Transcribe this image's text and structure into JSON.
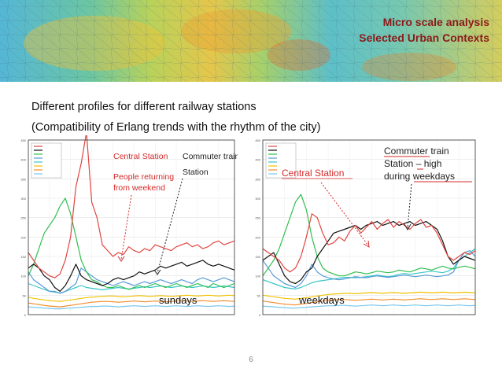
{
  "header": {
    "title_line1": "Micro scale analysis",
    "title_line2": "Selected Urban Contexts",
    "title_color": "#8b1a1a"
  },
  "intro": {
    "line1": "Different profiles for different railway stations",
    "line2": "(Compatibility of Erlang trends with the rhythm of the city)"
  },
  "page_number": "6",
  "colors": {
    "red_series": "#e0453f",
    "annotation_red": "#d62a2a",
    "annotation_dark": "#222222"
  },
  "chart_data": [
    {
      "type": "line",
      "label": "sundays",
      "ylim": [
        0,
        450
      ],
      "yticks": [
        0,
        50,
        100,
        150,
        200,
        250,
        300,
        350,
        400,
        450
      ],
      "grid": true,
      "legend_position": "top-left",
      "series": [
        {
          "color": "#e0453f",
          "values": [
            160,
            140,
            120,
            110,
            100,
            95,
            105,
            140,
            200,
            330,
            390,
            470,
            290,
            250,
            180,
            165,
            150,
            160,
            155,
            175,
            165,
            160,
            170,
            165,
            180,
            175,
            170,
            165,
            175,
            180,
            185,
            175,
            180,
            170,
            175,
            185,
            190,
            180,
            185,
            190
          ]
        },
        {
          "color": "#111111",
          "values": [
            120,
            130,
            120,
            100,
            90,
            70,
            60,
            75,
            100,
            130,
            100,
            90,
            85,
            80,
            75,
            80,
            90,
            95,
            90,
            95,
            100,
            110,
            105,
            110,
            115,
            125,
            120,
            125,
            130,
            135,
            125,
            130,
            135,
            140,
            130,
            125,
            130,
            125,
            120,
            115
          ]
        },
        {
          "color": "#2fbf4f",
          "values": [
            100,
            130,
            170,
            210,
            230,
            250,
            280,
            300,
            260,
            200,
            140,
            110,
            90,
            85,
            75,
            70,
            70,
            75,
            70,
            65,
            70,
            75,
            70,
            75,
            80,
            75,
            70,
            75,
            80,
            75,
            70,
            75,
            80,
            75,
            70,
            80,
            75,
            70,
            75,
            80
          ]
        },
        {
          "color": "#5a9bd6",
          "values": [
            110,
            90,
            80,
            70,
            60,
            60,
            55,
            60,
            70,
            80,
            120,
            110,
            100,
            90,
            85,
            80,
            75,
            80,
            85,
            80,
            75,
            80,
            85,
            80,
            85,
            90,
            85,
            80,
            85,
            90,
            85,
            80,
            90,
            95,
            90,
            85,
            90,
            95,
            90,
            85
          ]
        },
        {
          "color": "#38c6c6",
          "values": [
            80,
            75,
            70,
            65,
            60,
            58,
            56,
            60,
            65,
            70,
            75,
            70,
            68,
            66,
            64,
            66,
            68,
            70,
            68,
            66,
            68,
            70,
            72,
            70,
            72,
            74,
            72,
            70,
            72,
            74,
            72,
            70,
            72,
            74,
            72,
            70,
            72,
            74,
            72,
            70
          ]
        },
        {
          "color": "#f2c200",
          "values": [
            45,
            42,
            40,
            38,
            36,
            35,
            34,
            36,
            38,
            40,
            42,
            44,
            45,
            46,
            47,
            48,
            48,
            47,
            46,
            47,
            48,
            49,
            48,
            47,
            48,
            49,
            48,
            47,
            48,
            49,
            50,
            49,
            48,
            49,
            50,
            49,
            48,
            49,
            50,
            49
          ]
        },
        {
          "color": "#f28c28",
          "values": [
            30,
            28,
            26,
            24,
            22,
            21,
            20,
            22,
            24,
            26,
            28,
            30,
            32,
            33,
            34,
            34,
            33,
            32,
            33,
            34,
            35,
            34,
            33,
            34,
            35,
            34,
            33,
            34,
            35,
            36,
            35,
            34,
            35,
            36,
            35,
            34,
            35,
            36,
            35,
            34
          ]
        },
        {
          "color": "#7ac8ef",
          "values": [
            20,
            19,
            18,
            17,
            16,
            15,
            15,
            16,
            17,
            18,
            19,
            20,
            21,
            21,
            22,
            22,
            21,
            20,
            21,
            22,
            23,
            22,
            21,
            22,
            23,
            22,
            21,
            22,
            23,
            22,
            21,
            22,
            23,
            22,
            21,
            22,
            23,
            22,
            21,
            22
          ]
        }
      ]
    },
    {
      "type": "line",
      "label": "weekdays",
      "ylim": [
        0,
        450
      ],
      "yticks": [
        0,
        50,
        100,
        150,
        200,
        250,
        300,
        350,
        400,
        450
      ],
      "grid": true,
      "legend_position": "top-left",
      "series": [
        {
          "color": "#e0453f",
          "values": [
            170,
            160,
            150,
            140,
            120,
            110,
            120,
            150,
            200,
            260,
            250,
            210,
            180,
            185,
            200,
            190,
            215,
            230,
            210,
            225,
            240,
            220,
            235,
            245,
            225,
            240,
            230,
            220,
            235,
            245,
            225,
            230,
            210,
            180,
            150,
            140,
            150,
            160,
            155,
            165
          ]
        },
        {
          "color": "#111111",
          "values": [
            140,
            150,
            160,
            130,
            100,
            85,
            80,
            90,
            110,
            120,
            150,
            170,
            190,
            210,
            215,
            220,
            225,
            230,
            220,
            230,
            235,
            240,
            230,
            235,
            240,
            230,
            235,
            240,
            230,
            235,
            240,
            230,
            220,
            190,
            150,
            130,
            140,
            150,
            145,
            140
          ]
        },
        {
          "color": "#2fbf4f",
          "values": [
            100,
            120,
            140,
            170,
            210,
            250,
            290,
            310,
            270,
            200,
            150,
            120,
            110,
            105,
            100,
            100,
            105,
            110,
            108,
            105,
            108,
            112,
            110,
            108,
            110,
            115,
            112,
            110,
            115,
            120,
            118,
            115,
            120,
            125,
            120,
            118,
            122,
            125,
            122,
            118
          ]
        },
        {
          "color": "#5a9bd6",
          "values": [
            140,
            120,
            100,
            90,
            80,
            75,
            70,
            80,
            100,
            130,
            110,
            100,
            95,
            92,
            90,
            92,
            95,
            98,
            96,
            95,
            98,
            100,
            98,
            96,
            98,
            100,
            102,
            100,
            98,
            100,
            102,
            100,
            98,
            100,
            102,
            110,
            140,
            160,
            165,
            150
          ]
        },
        {
          "color": "#38c6c6",
          "values": [
            90,
            85,
            80,
            75,
            70,
            68,
            66,
            70,
            76,
            82,
            86,
            88,
            90,
            92,
            94,
            96,
            96,
            95,
            96,
            98,
            100,
            102,
            100,
            98,
            100,
            104,
            106,
            104,
            106,
            108,
            110,
            112,
            110,
            108,
            112,
            120,
            140,
            150,
            160,
            170
          ]
        },
        {
          "color": "#f2c200",
          "values": [
            50,
            48,
            46,
            44,
            42,
            41,
            40,
            42,
            44,
            46,
            48,
            50,
            52,
            53,
            54,
            55,
            55,
            54,
            55,
            56,
            57,
            56,
            55,
            56,
            57,
            56,
            55,
            56,
            57,
            58,
            57,
            56,
            57,
            58,
            57,
            56,
            57,
            58,
            57,
            56
          ]
        },
        {
          "color": "#f28c28",
          "values": [
            35,
            33,
            31,
            29,
            27,
            26,
            25,
            27,
            29,
            31,
            33,
            35,
            37,
            38,
            39,
            39,
            38,
            37,
            38,
            39,
            40,
            39,
            38,
            39,
            40,
            39,
            38,
            39,
            40,
            41,
            40,
            39,
            40,
            41,
            40,
            39,
            40,
            41,
            40,
            39
          ]
        },
        {
          "color": "#7ac8ef",
          "values": [
            22,
            21,
            20,
            19,
            18,
            17,
            17,
            18,
            19,
            20,
            21,
            22,
            23,
            23,
            24,
            24,
            23,
            22,
            23,
            24,
            25,
            24,
            23,
            24,
            25,
            24,
            23,
            24,
            25,
            24,
            23,
            24,
            25,
            24,
            23,
            24,
            25,
            24,
            23,
            24
          ]
        }
      ]
    }
  ],
  "annotations_left": {
    "central_station": "Central Station",
    "people_returning_line1": "People returning",
    "people_returning_line2": "from weekend",
    "commuter_line1": "Commuter train",
    "commuter_line2": "Station"
  },
  "annotations_right": {
    "commuter_line1": "Commuter train",
    "commuter_line2": "Station – high",
    "commuter_line3": "during weekdays",
    "central_station": "Central Station"
  }
}
